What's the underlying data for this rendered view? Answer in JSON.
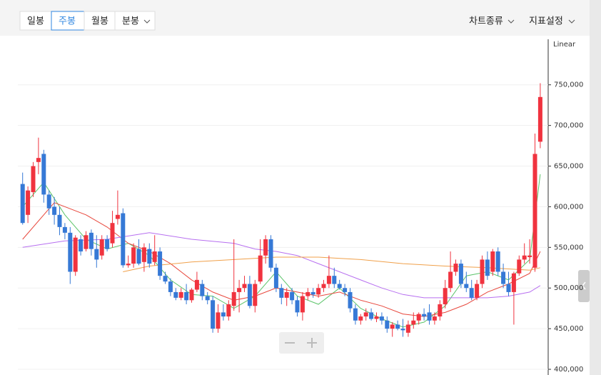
{
  "toolbar": {
    "periods": [
      "일봉",
      "주봉",
      "월봉",
      "분봉"
    ],
    "active": 1,
    "menus": [
      "차트종류",
      "지표설정"
    ]
  },
  "chart_data": {
    "type": "candlestick",
    "scale_label": "Linear",
    "up_color": "#f0333f",
    "down_color": "#3679d6",
    "open": [
      628000,
      590000,
      618000,
      655000,
      665000,
      615000,
      600000,
      590000,
      575000,
      568000,
      520000,
      560000,
      548000,
      568000,
      548000,
      540000,
      560000,
      555000,
      585000,
      592000,
      528000,
      530000,
      548000,
      532000,
      548000,
      532000,
      545000,
      515000,
      508000,
      495000,
      488000,
      495000,
      485000,
      498000,
      505000,
      490000,
      485000,
      450000,
      470000,
      465000,
      478000,
      495000,
      500000,
      505000,
      478000,
      508000,
      540000,
      560000,
      525000,
      500000,
      488000,
      495000,
      485000,
      470000,
      490000,
      495000,
      492000,
      500000,
      505000,
      515000,
      505000,
      500000,
      495000,
      475000,
      460000,
      465000,
      470000,
      462000,
      465000,
      460000,
      450000,
      455000,
      450000,
      445000,
      455000,
      460000,
      468000,
      470000,
      460000,
      465000,
      480000,
      500000,
      520000,
      530000,
      505000,
      500000,
      488000,
      505000,
      535000,
      520000,
      545000,
      520000,
      505000,
      495000,
      518000,
      535000,
      538000,
      525000,
      680000
    ],
    "high": [
      642000,
      625000,
      655000,
      685000,
      670000,
      620000,
      612000,
      600000,
      580000,
      575000,
      565000,
      565000,
      570000,
      572000,
      565000,
      565000,
      565000,
      595000,
      620000,
      598000,
      540000,
      555000,
      560000,
      555000,
      555000,
      565000,
      550000,
      520000,
      512000,
      500000,
      500000,
      505000,
      500000,
      520000,
      510000,
      495000,
      490000,
      480000,
      480000,
      485000,
      560000,
      510000,
      515000,
      515000,
      510000,
      560000,
      565000,
      565000,
      530000,
      505000,
      500000,
      500000,
      490000,
      495000,
      500000,
      500000,
      505000,
      510000,
      540000,
      525000,
      510000,
      505000,
      500000,
      480000,
      468000,
      475000,
      475000,
      470000,
      470000,
      465000,
      458000,
      460000,
      462000,
      460000,
      470000,
      470000,
      475000,
      480000,
      470000,
      485000,
      510000,
      545000,
      535000,
      535000,
      520000,
      510000,
      510000,
      540000,
      545000,
      548000,
      550000,
      530000,
      520000,
      520000,
      540000,
      555000,
      560000,
      690000,
      752000
    ],
    "low": [
      578000,
      580000,
      612000,
      640000,
      605000,
      590000,
      578000,
      565000,
      560000,
      505000,
      515000,
      540000,
      545000,
      540000,
      525000,
      535000,
      545000,
      550000,
      578000,
      525000,
      525000,
      525000,
      528000,
      520000,
      525000,
      528000,
      510000,
      505000,
      490000,
      485000,
      485000,
      480000,
      482000,
      495000,
      485000,
      480000,
      445000,
      445000,
      460000,
      460000,
      472000,
      470000,
      495000,
      475000,
      470000,
      505000,
      530000,
      520000,
      495000,
      480000,
      478000,
      480000,
      465000,
      460000,
      485000,
      488000,
      488000,
      495000,
      500000,
      500000,
      498000,
      490000,
      470000,
      455000,
      455000,
      460000,
      460000,
      458000,
      455000,
      445000,
      440000,
      448000,
      440000,
      440000,
      450000,
      455000,
      460000,
      455000,
      455000,
      460000,
      475000,
      495000,
      515000,
      500000,
      495000,
      485000,
      485000,
      500000,
      510000,
      515000,
      515000,
      500000,
      490000,
      455000,
      515000,
      530000,
      530000,
      520000,
      672000
    ],
    "close": [
      580000,
      620000,
      650000,
      660000,
      615000,
      598000,
      590000,
      575000,
      568000,
      520000,
      562000,
      545000,
      565000,
      548000,
      535000,
      560000,
      548000,
      580000,
      590000,
      528000,
      530000,
      550000,
      530000,
      550000,
      530000,
      545000,
      515000,
      508000,
      495000,
      488000,
      495000,
      485000,
      498000,
      510000,
      490000,
      485000,
      450000,
      470000,
      465000,
      480000,
      495000,
      500000,
      505000,
      478000,
      505000,
      540000,
      560000,
      525000,
      500000,
      488000,
      495000,
      485000,
      470000,
      490000,
      495000,
      492000,
      500000,
      505000,
      515000,
      505000,
      500000,
      495000,
      475000,
      460000,
      465000,
      470000,
      462000,
      465000,
      460000,
      450000,
      455000,
      450000,
      448000,
      455000,
      460000,
      468000,
      465000,
      460000,
      465000,
      480000,
      500000,
      520000,
      530000,
      505000,
      500000,
      488000,
      505000,
      535000,
      515000,
      545000,
      520000,
      505000,
      495000,
      518000,
      535000,
      540000,
      540000,
      665000,
      735000
    ],
    "lines": [
      {
        "color": "#5cc46a",
        "x": [
          0,
          4,
          8,
          12,
          16,
          20,
          24,
          28,
          32,
          36,
          40,
          44,
          48,
          52,
          56,
          60,
          64,
          68,
          72,
          76,
          80,
          84,
          88,
          92,
          96,
          98
        ],
        "values": [
          600000,
          630000,
          590000,
          560000,
          548000,
          555000,
          540000,
          510000,
          492000,
          490000,
          475000,
          490000,
          520000,
          490000,
          480000,
          500000,
          475000,
          462000,
          452000,
          458000,
          478000,
          515000,
          520000,
          510000,
          535000,
          640000
        ]
      },
      {
        "color": "#e8473c",
        "x": [
          0,
          6,
          12,
          16,
          20,
          24,
          28,
          32,
          36,
          40,
          44,
          48,
          52,
          56,
          60,
          64,
          68,
          72,
          76,
          80,
          84,
          88,
          92,
          96,
          98
        ],
        "values": [
          560000,
          605000,
          590000,
          575000,
          555000,
          545000,
          530000,
          510000,
          495000,
          485000,
          490000,
          500000,
          495000,
          490000,
          495000,
          485000,
          478000,
          468000,
          465000,
          470000,
          480000,
          495000,
          505000,
          518000,
          545000
        ]
      },
      {
        "color": "#b76ff0",
        "x": [
          0,
          8,
          16,
          24,
          32,
          40,
          44,
          48,
          52,
          56,
          60,
          64,
          68,
          72,
          76,
          80,
          84,
          88,
          92,
          96,
          98
        ],
        "values": [
          550000,
          558000,
          560000,
          568000,
          560000,
          555000,
          548000,
          545000,
          540000,
          530000,
          520000,
          510000,
          500000,
          492000,
          488000,
          488000,
          488000,
          488000,
          490000,
          495000,
          503000
        ]
      },
      {
        "color": "#f0a04a",
        "x": [
          19,
          24,
          32,
          40,
          48,
          56,
          64,
          72,
          80,
          88,
          96,
          98
        ],
        "values": [
          520000,
          527000,
          532000,
          535000,
          538000,
          538000,
          535000,
          530000,
          527000,
          525000,
          522000,
          525000
        ]
      }
    ],
    "ylim": [
      393000,
      806000
    ],
    "yticks": [
      {
        "value": 400000,
        "label": "400,000"
      },
      {
        "value": 450000,
        "label": "450,000"
      },
      {
        "value": 500000,
        "label": "500,000"
      },
      {
        "value": 550000,
        "label": "550,000"
      },
      {
        "value": 600000,
        "label": "600,000"
      },
      {
        "value": 650000,
        "label": "650,000"
      },
      {
        "value": 700000,
        "label": "700,000"
      },
      {
        "value": 750000,
        "label": "750,000"
      }
    ],
    "grid": true
  }
}
